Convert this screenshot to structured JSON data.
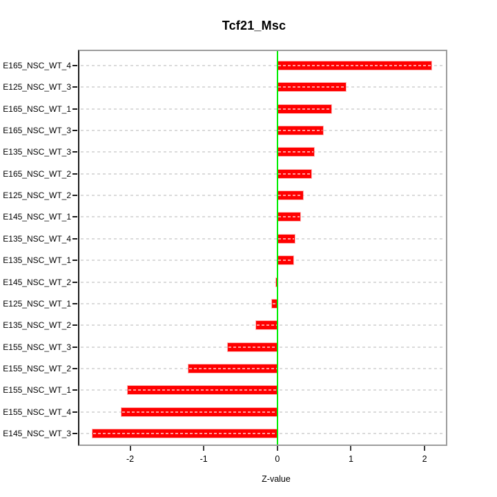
{
  "chart_data": {
    "type": "bar",
    "orientation": "horizontal",
    "title": "Tcf21_Msc",
    "xlabel": "Z-value",
    "ylabel": "",
    "legend": "none",
    "grid": "dashed-row-lines",
    "reference_line_x": 0,
    "xlim": [
      -2.69,
      2.29
    ],
    "xticks": [
      -2,
      -1,
      0,
      1,
      2
    ],
    "categories": [
      "E165_NSC_WT_4",
      "E125_NSC_WT_3",
      "E165_NSC_WT_1",
      "E165_NSC_WT_3",
      "E135_NSC_WT_3",
      "E165_NSC_WT_2",
      "E125_NSC_WT_2",
      "E145_NSC_WT_1",
      "E135_NSC_WT_4",
      "E135_NSC_WT_1",
      "E145_NSC_WT_2",
      "E125_NSC_WT_1",
      "E135_NSC_WT_2",
      "E155_NSC_WT_3",
      "E155_NSC_WT_2",
      "E155_NSC_WT_1",
      "E155_NSC_WT_4",
      "E145_NSC_WT_3"
    ],
    "values": [
      2.09,
      0.93,
      0.73,
      0.62,
      0.5,
      0.46,
      0.35,
      0.31,
      0.24,
      0.22,
      -0.02,
      -0.07,
      -0.29,
      -0.67,
      -1.21,
      -2.03,
      -2.12,
      -2.51
    ],
    "colors": {
      "bar": "#ff0000",
      "bar_inner_dash": "#ff9999",
      "row_dash_line": "#dadada",
      "zero_line": "#00ee00",
      "box_border": "#9c9c9c",
      "axis_line": "#1a1a1a",
      "text": "#000000",
      "background": "#ffffff"
    }
  }
}
